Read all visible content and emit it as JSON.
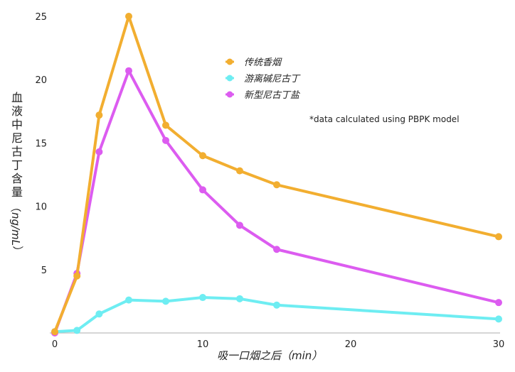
{
  "chart_data": {
    "type": "line",
    "title": "",
    "xlabel": "吸一口烟之后（min）",
    "ylabel": "血液中尼古丁含量（ng/mL）",
    "xlim": [
      0,
      30
    ],
    "ylim": [
      0,
      25
    ],
    "x_ticks": [
      0,
      10,
      20,
      30
    ],
    "y_ticks": [
      5,
      10,
      15,
      20,
      25
    ],
    "x_origin_label": "0",
    "grid": false,
    "legend_position": "upper center",
    "annotation": "*data calculated using PBPK model",
    "x": [
      0,
      1.5,
      3,
      5,
      7.5,
      10,
      12.5,
      15,
      30
    ],
    "series": [
      {
        "name": "传统香烟",
        "color": "#F2AE30",
        "values": [
          0.1,
          4.5,
          17.2,
          25.0,
          16.4,
          14.0,
          12.8,
          11.7,
          7.6
        ]
      },
      {
        "name": "游离碱尼古丁",
        "color": "#6EEDF2",
        "values": [
          0.1,
          0.2,
          1.5,
          2.6,
          2.5,
          2.8,
          2.7,
          2.2,
          1.1
        ]
      },
      {
        "name": "新型尼古丁盐",
        "color": "#DC5CF0",
        "values": [
          0.0,
          4.7,
          14.3,
          20.7,
          15.2,
          11.3,
          8.5,
          6.6,
          2.4
        ]
      }
    ]
  },
  "labels": {
    "ylabel_cjk": [
      "血",
      "液",
      "中",
      "尼",
      "古",
      "丁",
      "含",
      "量"
    ],
    "ylabel_unit": "（ng/mL）"
  }
}
